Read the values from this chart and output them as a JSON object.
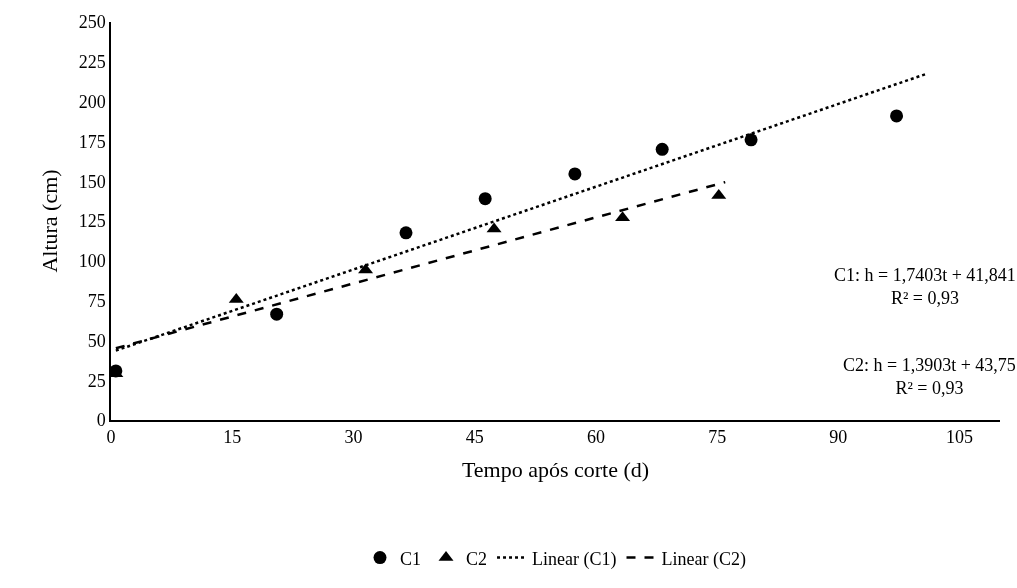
{
  "chart_data": {
    "type": "scatter",
    "xlabel": "Tempo após corte (d)",
    "ylabel": "Altura (cm)",
    "xlim": [
      0,
      110
    ],
    "xticks": [
      0,
      15,
      30,
      45,
      60,
      75,
      90,
      105
    ],
    "ylim": [
      0,
      250
    ],
    "yticks": [
      0,
      25,
      50,
      75,
      100,
      125,
      150,
      175,
      200,
      225,
      250
    ],
    "legend": "bottom",
    "series": [
      {
        "name": "C1",
        "marker": "circle",
        "color": "#000000",
        "x": [
          0.6,
          20.5,
          36.5,
          46.3,
          57.4,
          68.2,
          79.2,
          97.2
        ],
        "values": [
          30.8,
          66.5,
          117.6,
          139,
          154.6,
          170,
          176,
          191
        ]
      },
      {
        "name": "C2",
        "marker": "triangle",
        "color": "#000000",
        "x": [
          0.6,
          15.5,
          31.5,
          47.4,
          63.3,
          75.2
        ],
        "values": [
          29,
          75.7,
          94.2,
          120,
          127,
          141
        ]
      },
      {
        "name": "Linear (C1)",
        "type": "line",
        "line_style": "dotted",
        "color": "#000000",
        "x": [
          0.6,
          101
        ],
        "values": [
          43.6,
          217.6
        ]
      },
      {
        "name": "Linear (C2)",
        "type": "line",
        "line_style": "dashed",
        "color": "#000000",
        "x": [
          0.6,
          76
        ],
        "values": [
          45.1,
          149.4
        ]
      }
    ],
    "annotations": [
      "C1: h = 1,7403t + 41,841\nR² = 0,93",
      "C2: h = 1,3903t + 43,75\nR² = 0,93"
    ]
  }
}
